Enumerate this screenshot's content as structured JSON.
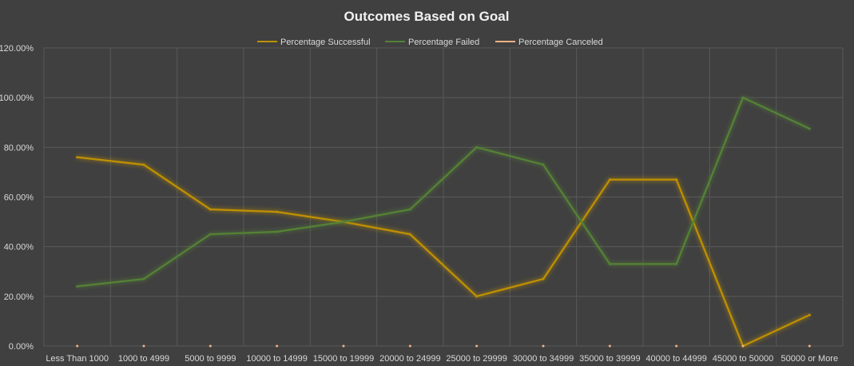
{
  "chart_data": {
    "type": "line",
    "title": "Outcomes Based on Goal",
    "categories": [
      "Less Than 1000",
      "1000 to 4999",
      "5000 to 9999",
      "10000 to 14999",
      "15000 to 19999",
      "20000 to 24999",
      "25000 to 29999",
      "30000 to 34999",
      "35000 to 39999",
      "40000 to 44999",
      "45000 to 50000",
      "50000 or More"
    ],
    "series": [
      {
        "name": "Percentage Successful",
        "color": "#bf9000",
        "values": [
          76,
          73,
          55,
          54,
          50,
          45,
          20,
          27,
          67,
          67,
          0,
          12.5
        ]
      },
      {
        "name": "Percentage Failed",
        "color": "#548235",
        "values": [
          24,
          27,
          45,
          46,
          50,
          55,
          80,
          73,
          33,
          33,
          100,
          87.5
        ]
      },
      {
        "name": "Percentage Canceled",
        "color": "#f4b183",
        "values": [
          0,
          0,
          0,
          0,
          0,
          0,
          0,
          0,
          0,
          0,
          0,
          0
        ]
      }
    ],
    "y_ticks": [
      "0.00%",
      "20.00%",
      "40.00%",
      "60.00%",
      "80.00%",
      "100.00%",
      "120.00%"
    ],
    "ylim": [
      0,
      120
    ],
    "xlabel": "",
    "ylabel": "",
    "grid": true,
    "legend_position": "top"
  }
}
